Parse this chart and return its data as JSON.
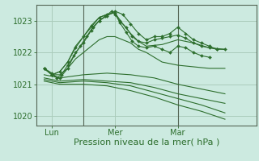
{
  "bg_color": "#cceae0",
  "grid_color": "#aaccbb",
  "line_color": "#2d6e2d",
  "marker_color": "#2d6e2d",
  "xlabel": "Pression niveau de la mer( hPa )",
  "xlabel_fontsize": 8,
  "ylabel_ticks": [
    1020,
    1021,
    1022,
    1023
  ],
  "xtick_labels": [
    "Lun",
    "Mer",
    "Mar"
  ],
  "xtick_positions": [
    1,
    5,
    9
  ],
  "xlim": [
    0,
    14
  ],
  "ylim": [
    1019.7,
    1023.5
  ],
  "series": [
    {
      "x": [
        0.5,
        1,
        1.5,
        2,
        2.5,
        3,
        3.5,
        4,
        4.5,
        5,
        5.5,
        6,
        6.5,
        7,
        7.5,
        8,
        8.5,
        9,
        9.5,
        10,
        10.5,
        11,
        11.5,
        12
      ],
      "y": [
        1021.5,
        1021.3,
        1021.2,
        1021.5,
        1022.0,
        1022.3,
        1022.7,
        1023.0,
        1023.15,
        1023.3,
        1023.2,
        1022.9,
        1022.6,
        1022.4,
        1022.5,
        1022.5,
        1022.6,
        1022.8,
        1022.6,
        1022.4,
        1022.3,
        1022.2,
        1022.1,
        1022.1
      ],
      "markers": true
    },
    {
      "x": [
        0.5,
        1,
        1.5,
        2,
        2.5,
        3,
        3.5,
        4,
        4.5,
        5,
        5.5,
        6,
        6.5,
        7,
        8,
        9,
        10,
        11,
        12
      ],
      "y": [
        1021.5,
        1021.3,
        1021.4,
        1021.7,
        1022.2,
        1022.5,
        1022.8,
        1023.1,
        1023.2,
        1023.25,
        1022.9,
        1022.6,
        1022.35,
        1022.2,
        1022.25,
        1022.4,
        1022.3,
        1022.15,
        1022.1
      ],
      "markers": false
    },
    {
      "x": [
        0.5,
        1,
        1.5,
        2,
        2.5,
        3,
        3.5,
        4,
        4.5,
        5,
        5.5,
        6,
        6.5,
        7,
        8,
        9,
        10,
        11,
        12
      ],
      "y": [
        1021.5,
        1021.3,
        1021.3,
        1021.5,
        1021.8,
        1022.0,
        1022.2,
        1022.4,
        1022.5,
        1022.5,
        1022.4,
        1022.3,
        1022.1,
        1022.0,
        1021.7,
        1021.6,
        1021.55,
        1021.5,
        1021.5
      ],
      "markers": false
    },
    {
      "x": [
        0.5,
        1.5,
        3,
        4.5,
        6,
        7.5,
        9,
        10.5,
        12
      ],
      "y": [
        1021.3,
        1021.2,
        1021.3,
        1021.35,
        1021.3,
        1021.2,
        1021.0,
        1020.85,
        1020.7
      ],
      "markers": false
    },
    {
      "x": [
        0.5,
        1.5,
        3,
        4.5,
        6,
        7.5,
        9,
        10.5,
        12
      ],
      "y": [
        1021.2,
        1021.1,
        1021.15,
        1021.1,
        1021.05,
        1020.9,
        1020.7,
        1020.55,
        1020.4
      ],
      "markers": false
    },
    {
      "x": [
        0.5,
        1.5,
        3,
        4.5,
        6,
        7.5,
        9,
        10.5,
        12
      ],
      "y": [
        1021.15,
        1021.05,
        1021.1,
        1021.05,
        1020.95,
        1020.75,
        1020.55,
        1020.35,
        1020.1
      ],
      "markers": false
    },
    {
      "x": [
        0.5,
        1.5,
        3,
        4.5,
        6,
        7.5,
        9,
        10.5,
        12
      ],
      "y": [
        1021.1,
        1021.0,
        1021.0,
        1020.95,
        1020.8,
        1020.6,
        1020.35,
        1020.15,
        1019.9
      ],
      "markers": false
    }
  ],
  "series_markers": [
    {
      "x": [
        0.5,
        1,
        1.3,
        1.6,
        2,
        2.4,
        2.8,
        3.2,
        3.6,
        4.0,
        4.4,
        4.8,
        5.0,
        5.3,
        5.7,
        6.1,
        6.5,
        7,
        7.5,
        8,
        8.5,
        9,
        9.5,
        10,
        10.5,
        11,
        11.5
      ],
      "y": [
        1021.5,
        1021.35,
        1021.2,
        1021.3,
        1021.6,
        1021.9,
        1022.2,
        1022.5,
        1022.8,
        1023.0,
        1023.15,
        1023.3,
        1023.2,
        1023.0,
        1022.8,
        1022.5,
        1022.35,
        1022.3,
        1022.4,
        1022.45,
        1022.5,
        1022.55,
        1022.45,
        1022.3,
        1022.2,
        1022.15,
        1022.1
      ]
    },
    {
      "x": [
        0.5,
        1,
        1.5,
        2,
        2.5,
        3,
        3.5,
        4,
        4.5,
        5,
        5.3,
        5.7,
        6.1,
        6.5,
        7,
        7.5,
        8,
        8.5,
        9,
        9.5,
        10,
        10.5,
        11
      ],
      "y": [
        1021.5,
        1021.3,
        1021.4,
        1021.7,
        1022.15,
        1022.5,
        1022.85,
        1023.1,
        1023.2,
        1023.25,
        1022.95,
        1022.65,
        1022.35,
        1022.2,
        1022.15,
        1022.2,
        1022.1,
        1022.0,
        1022.2,
        1022.15,
        1022.0,
        1021.9,
        1021.85
      ]
    }
  ],
  "vlines": [
    3,
    9
  ],
  "vline_color": "#556655",
  "spine_color": "#556655"
}
